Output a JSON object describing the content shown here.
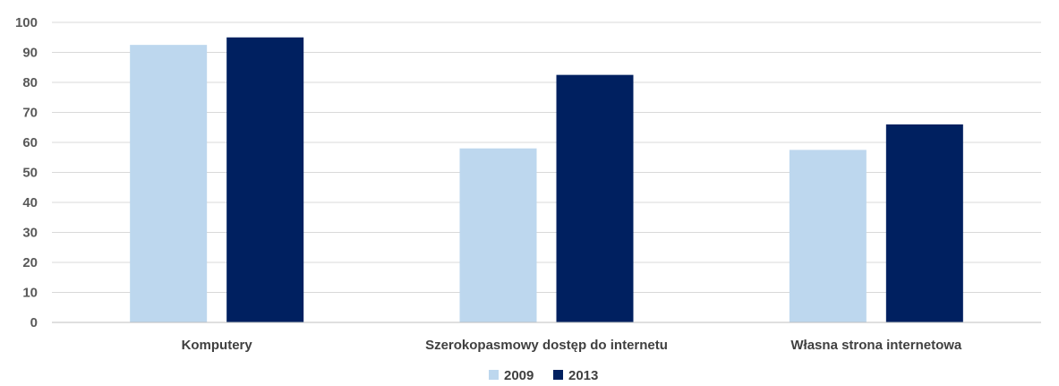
{
  "chart_data": {
    "type": "bar",
    "categories": [
      "Komputery",
      "Szerokopasmowy dostęp do internetu",
      "Własna strona internetowa"
    ],
    "series": [
      {
        "name": "2009",
        "values": [
          92.5,
          58,
          57.5
        ],
        "color": "#bdd7ee"
      },
      {
        "name": "2013",
        "values": [
          95,
          82.5,
          66
        ],
        "color": "#002060"
      }
    ],
    "y_ticks": [
      "0",
      "10",
      "20",
      "30",
      "40",
      "50",
      "60",
      "70",
      "80",
      "90",
      "100"
    ],
    "ylim": [
      0,
      100
    ],
    "grid": true,
    "legend": "bottom-center"
  }
}
